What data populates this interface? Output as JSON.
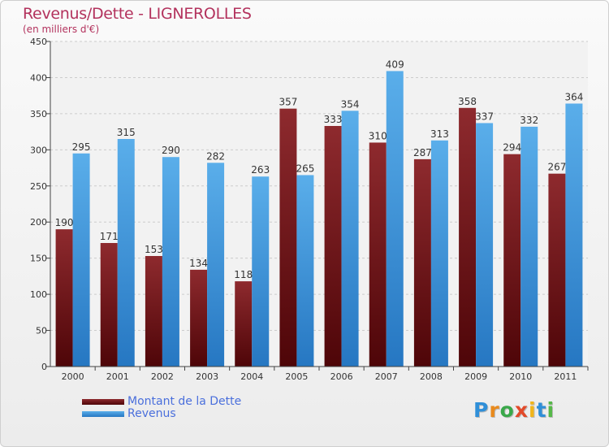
{
  "chart_data": {
    "type": "bar",
    "title": "Revenus/Dette - LIGNEROLLES",
    "subtitle": "(en milliers d'€)",
    "categories": [
      "2000",
      "2001",
      "2002",
      "2003",
      "2004",
      "2005",
      "2006",
      "2007",
      "2008",
      "2009",
      "2010",
      "2011"
    ],
    "series": [
      {
        "name": "Montant de la Dette",
        "values": [
          190,
          171,
          153,
          134,
          118,
          357,
          333,
          310,
          287,
          358,
          294,
          267
        ],
        "color": "#7a1b1f"
      },
      {
        "name": "Revenus",
        "values": [
          295,
          315,
          290,
          282,
          263,
          265,
          354,
          409,
          313,
          337,
          332,
          364
        ],
        "color": "#4fa3e3"
      }
    ],
    "ylim": [
      0,
      450
    ],
    "yticks": [
      "0",
      "50",
      "100",
      "150",
      "200",
      "250",
      "300",
      "350",
      "400",
      "450"
    ],
    "grid": true,
    "legend": "bottom-left"
  },
  "logo": {
    "letters": [
      {
        "ch": "P",
        "color": "#2f8fd8"
      },
      {
        "ch": "r",
        "color": "#e98a1c"
      },
      {
        "ch": "o",
        "color": "#3aa84a"
      },
      {
        "ch": "x",
        "color": "#e24a2a"
      },
      {
        "ch": "i",
        "color": "#f1b51b"
      },
      {
        "ch": "t",
        "color": "#2f8fd8"
      },
      {
        "ch": "i",
        "color": "#56b848"
      }
    ]
  }
}
